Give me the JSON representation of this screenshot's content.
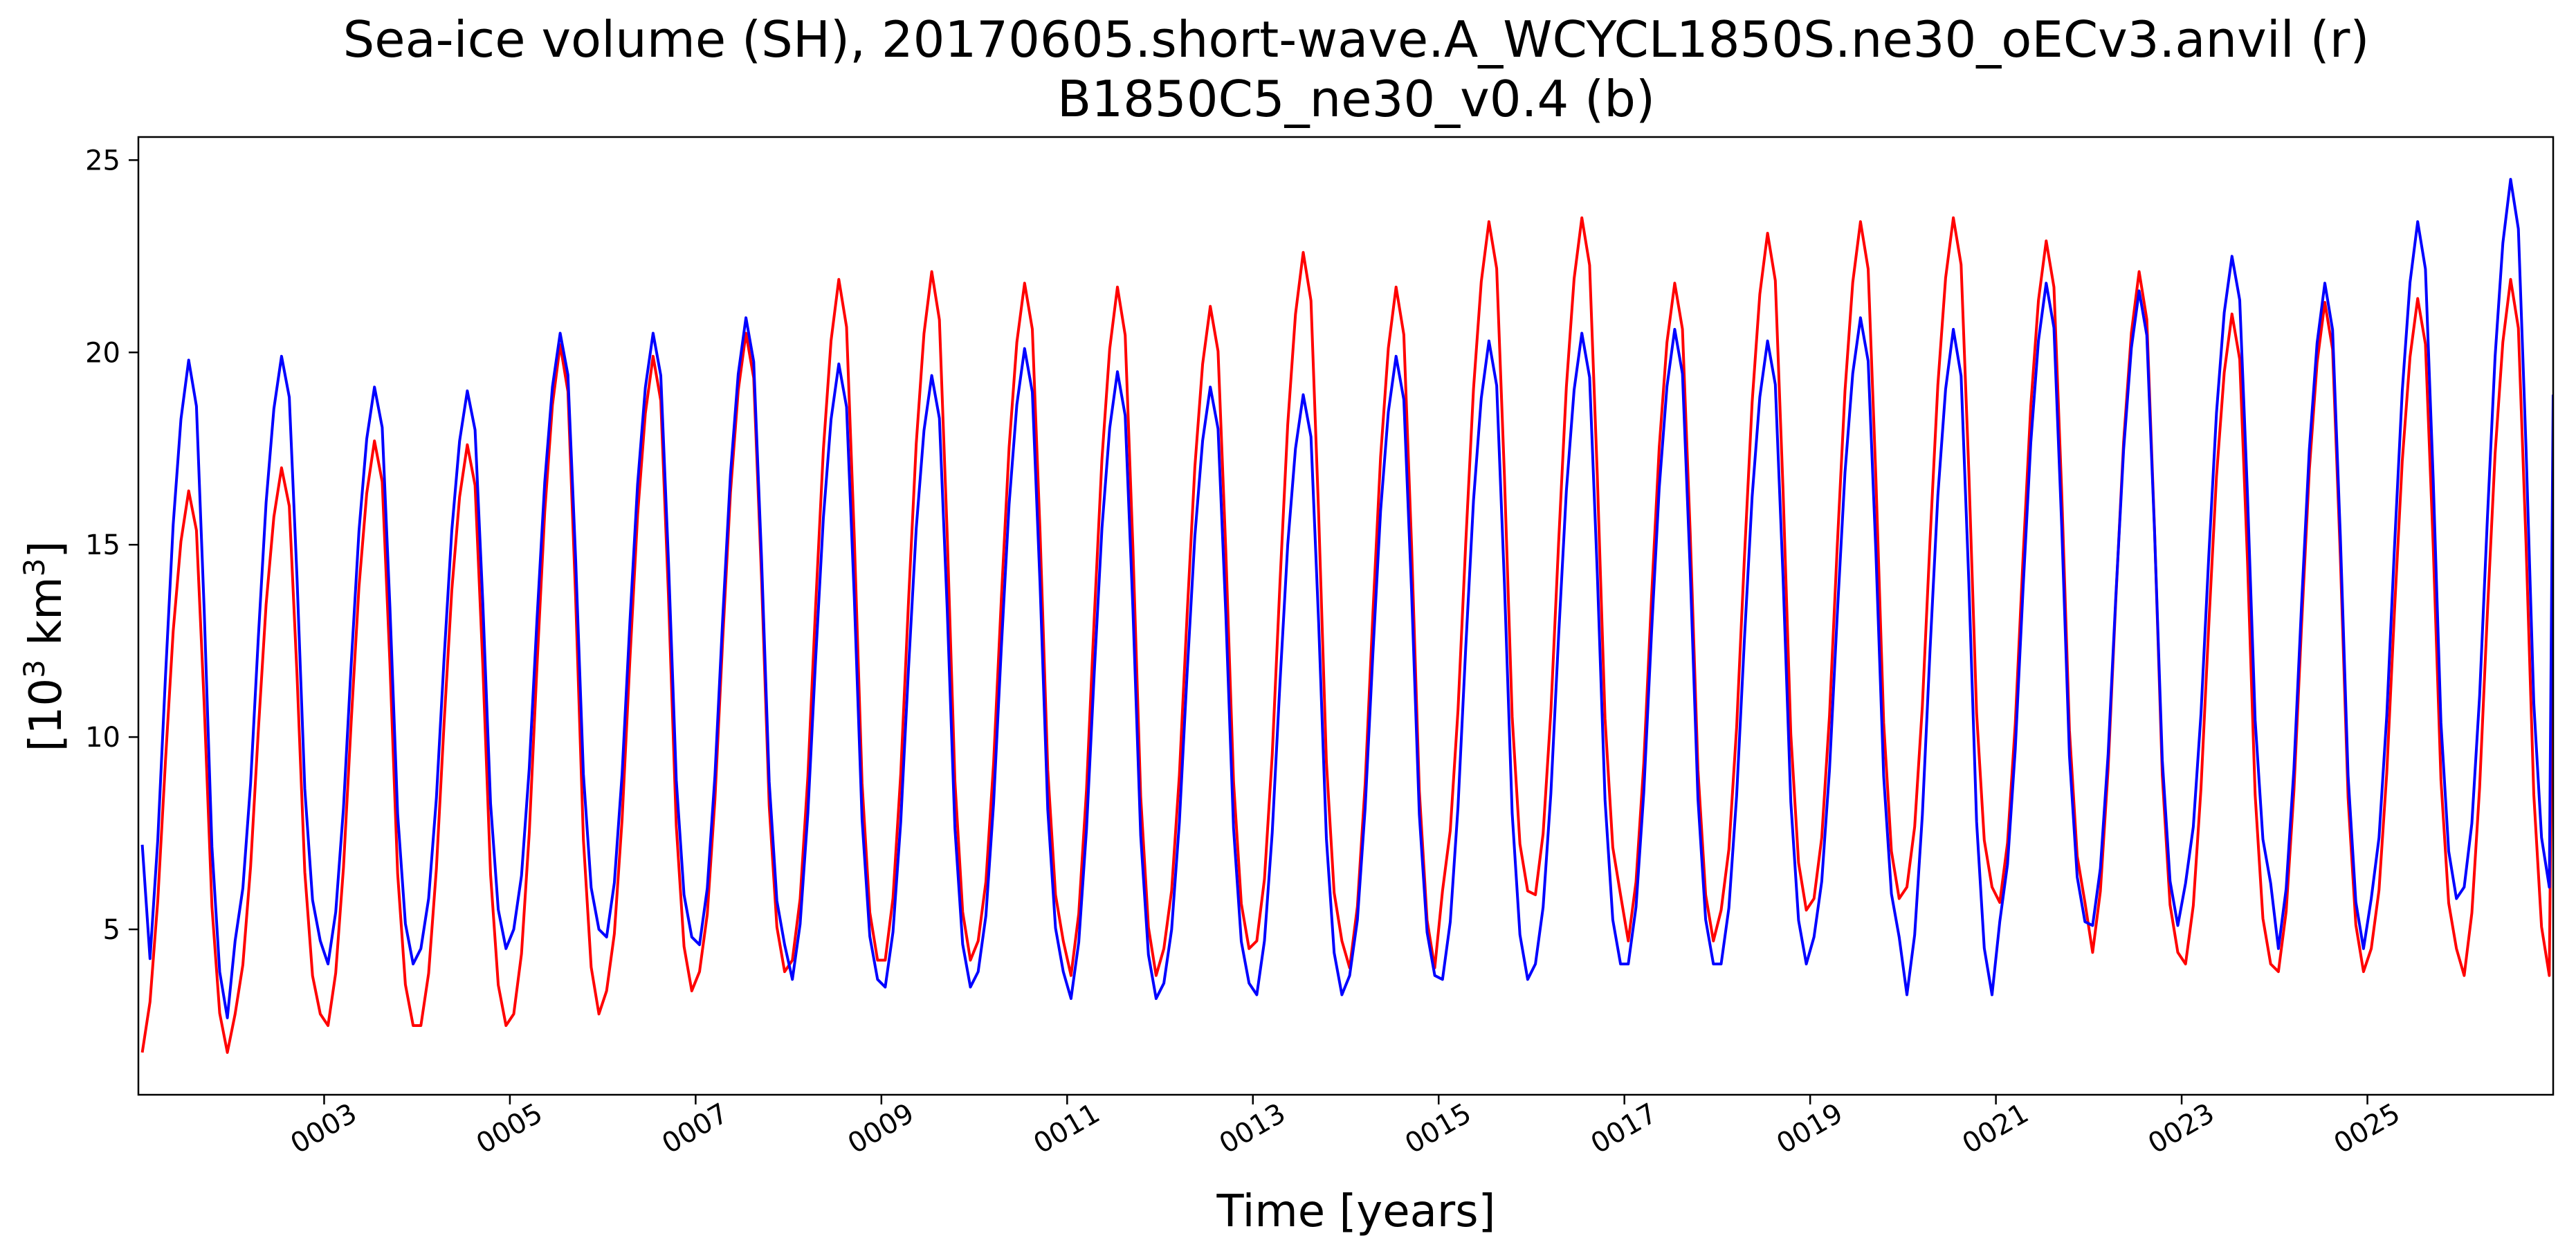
{
  "chart_data": {
    "type": "line",
    "title_line1": "Sea-ice volume (SH), 20170605.short-wave.A_WCYCL1850S.ne30_oECv3.anvil (r)",
    "title_line2": "B1850C5_ne30_v0.4 (b)",
    "xlabel": "Time [years]",
    "ylabel_base": "[10",
    "ylabel_exp1": "3",
    "ylabel_mid": " km",
    "ylabel_exp2": "3",
    "ylabel_end": "]",
    "xlim": [
      1.0,
      27.0
    ],
    "ylim": [
      0.7,
      25.6
    ],
    "x_ticks": [
      {
        "value": 3,
        "label": "0003"
      },
      {
        "value": 5,
        "label": "0005"
      },
      {
        "value": 7,
        "label": "0007"
      },
      {
        "value": 9,
        "label": "0009"
      },
      {
        "value": 11,
        "label": "0011"
      },
      {
        "value": 13,
        "label": "0013"
      },
      {
        "value": 15,
        "label": "0015"
      },
      {
        "value": 17,
        "label": "0017"
      },
      {
        "value": 19,
        "label": "0019"
      },
      {
        "value": 21,
        "label": "0021"
      },
      {
        "value": 23,
        "label": "0023"
      },
      {
        "value": 25,
        "label": "0025"
      }
    ],
    "y_ticks": [
      {
        "value": 5,
        "label": "5"
      },
      {
        "value": 10,
        "label": "10"
      },
      {
        "value": 15,
        "label": "15"
      },
      {
        "value": 20,
        "label": "20"
      },
      {
        "value": 25,
        "label": "25"
      }
    ],
    "grid": false,
    "legend": "none",
    "monthly_shape": [
      0.0,
      0.09,
      0.27,
      0.52,
      0.75,
      0.91,
      1.0,
      0.93,
      0.62,
      0.26,
      0.07,
      0.0
    ],
    "series": [
      {
        "color": "#ff0000",
        "year_start": 1,
        "minima": [
          1.8,
          2.8,
          2.5,
          2.5,
          2.8,
          3.4,
          3.9,
          4.2,
          4.2,
          4.7,
          3.8,
          4.5,
          4.7,
          4.0,
          6.0,
          5.9,
          4.7,
          5.5,
          5.8,
          6.1,
          5.7,
          4.4,
          4.1,
          3.9,
          4.5,
          3.8
        ],
        "maxima": [
          16.4,
          17.0,
          17.7,
          17.6,
          20.2,
          19.9,
          20.5,
          21.9,
          22.1,
          21.8,
          21.7,
          21.2,
          22.6,
          21.7,
          23.4,
          23.5,
          21.8,
          23.1,
          23.4,
          23.5,
          22.9,
          22.1,
          21.0,
          21.3,
          21.4,
          21.9
        ],
        "final_value": 14.5
      },
      {
        "color": "#0000ff",
        "year_start": 1,
        "first_value": 7.2,
        "minima": [
          2.7,
          4.7,
          4.1,
          4.5,
          5.0,
          4.8,
          4.6,
          3.7,
          3.5,
          3.9,
          3.2,
          3.6,
          3.3,
          3.8,
          3.7,
          4.1,
          4.1,
          4.1,
          4.8,
          3.3,
          5.2,
          5.1,
          6.2,
          4.5,
          5.8,
          6.1
        ],
        "maxima": [
          19.8,
          19.9,
          19.1,
          19.0,
          20.5,
          20.5,
          20.9,
          19.7,
          19.4,
          20.1,
          19.5,
          19.1,
          18.9,
          19.9,
          20.3,
          20.5,
          20.6,
          20.3,
          20.9,
          20.6,
          21.8,
          21.6,
          22.5,
          21.8,
          23.4,
          24.5
        ],
        "final_value": 18.9
      }
    ]
  }
}
